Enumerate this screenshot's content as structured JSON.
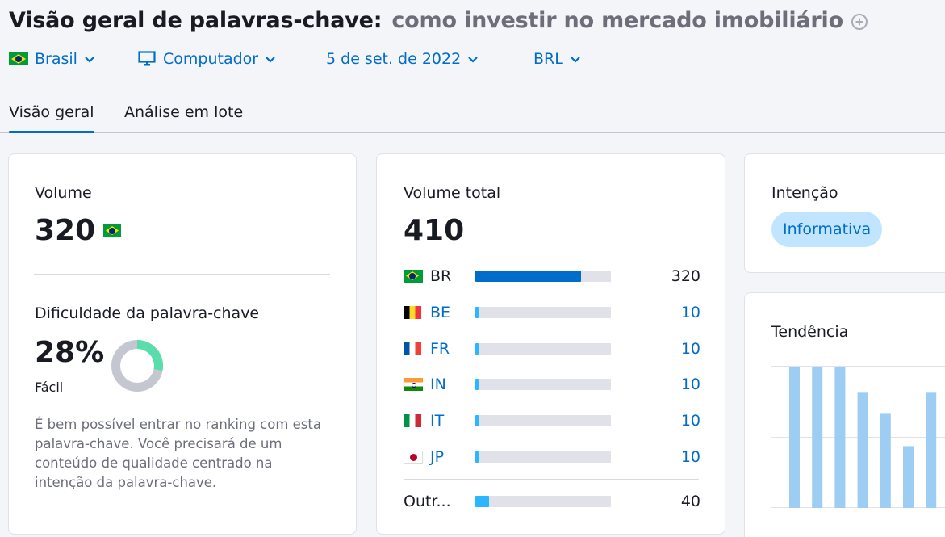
{
  "header": {
    "title": "Visão geral de palavras-chave:",
    "keyword": "como investir no mercado imobiliário"
  },
  "filters": {
    "country": "Brasil",
    "device": "Computador",
    "date": "5 de set. de 2022",
    "currency": "BRL"
  },
  "tabs": [
    {
      "label": "Visão geral",
      "active": true
    },
    {
      "label": "Análise em lote",
      "active": false
    }
  ],
  "volume_card": {
    "label": "Volume",
    "value": "320",
    "kd_label": "Dificuldade da palavra-chave",
    "kd_value": "28%",
    "kd_percent": 28,
    "kd_level": "Fácil",
    "kd_description": "É bem possível entrar no ranking com esta palavra-chave. Você precisará de um conteúdo de qualidade centrado na intenção da palavra-chave."
  },
  "global_volume_card": {
    "label": "Volume total",
    "value": "410",
    "countries": [
      {
        "code": "BR",
        "value": "320",
        "share": 0.78,
        "link": false,
        "flag": "brazil-flag"
      },
      {
        "code": "BE",
        "value": "10",
        "share": 0.02,
        "link": true,
        "flag": "belgium-flag"
      },
      {
        "code": "FR",
        "value": "10",
        "share": 0.02,
        "link": true,
        "flag": "france-flag"
      },
      {
        "code": "IN",
        "value": "10",
        "share": 0.02,
        "link": true,
        "flag": "india-flag"
      },
      {
        "code": "IT",
        "value": "10",
        "share": 0.02,
        "link": true,
        "flag": "italy-flag"
      },
      {
        "code": "JP",
        "value": "10",
        "share": 0.02,
        "link": true,
        "flag": "japan-flag"
      }
    ],
    "other": {
      "label": "Outr...",
      "value": "40",
      "share": 0.1
    }
  },
  "intent_card": {
    "label": "Intenção",
    "intent": "Informativa"
  },
  "trend_card": {
    "label": "Tendência"
  },
  "chart_data": {
    "type": "bar",
    "title": "Tendência",
    "values": [
      1.0,
      1.0,
      1.0,
      0.82,
      0.67,
      0.44,
      0.82
    ],
    "ylim": [
      0,
      1
    ],
    "grid": true
  },
  "colors": {
    "accent": "#006dca",
    "bar_track": "#e0e1e9",
    "other_bar": "#2bb7ff",
    "kd_green": "#59ddaa",
    "kd_gray": "#c4c7cf",
    "trend_bar": "#9dcdf2",
    "intent_bg": "#c2e5ff"
  }
}
